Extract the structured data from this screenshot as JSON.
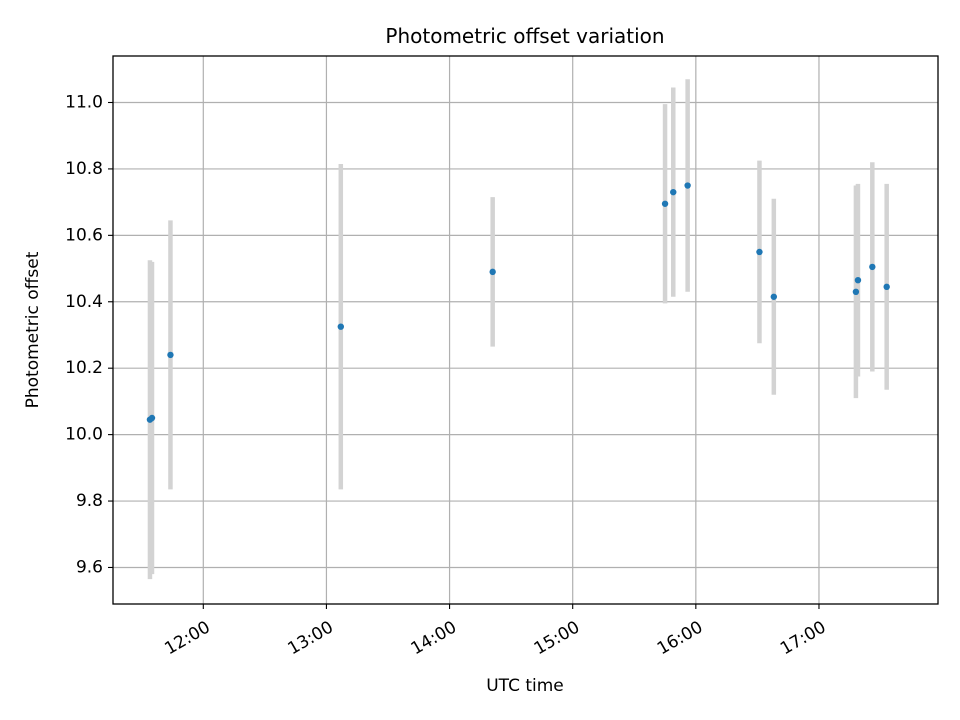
{
  "chart_data": {
    "type": "scatter",
    "title": "Photometric offset variation",
    "xlabel": "UTC time",
    "ylabel": "Photometric offset",
    "x_ticks": [
      "12:00",
      "13:00",
      "14:00",
      "15:00",
      "16:00",
      "17:00"
    ],
    "y_ticks": [
      "9.6",
      "9.8",
      "10.0",
      "10.2",
      "10.4",
      "10.6",
      "10.8",
      "11.0"
    ],
    "xlim": [
      "11:16",
      "17:58"
    ],
    "ylim": [
      9.49,
      11.14
    ],
    "grid": true,
    "colors": {
      "point": "#1f77b4",
      "errorbar": "#d3d3d3",
      "grid": "#b0b0b0"
    },
    "points": [
      {
        "x": "11:34",
        "y": 10.045,
        "yerr": 0.48
      },
      {
        "x": "11:35",
        "y": 10.05,
        "yerr": 0.47
      },
      {
        "x": "11:44",
        "y": 10.24,
        "yerr": 0.405
      },
      {
        "x": "13:07",
        "y": 10.325,
        "yerr": 0.49
      },
      {
        "x": "14:21",
        "y": 10.49,
        "yerr": 0.225
      },
      {
        "x": "15:45",
        "y": 10.695,
        "yerr": 0.3
      },
      {
        "x": "15:49",
        "y": 10.73,
        "yerr": 0.315
      },
      {
        "x": "15:56",
        "y": 10.75,
        "yerr": 0.32
      },
      {
        "x": "16:31",
        "y": 10.55,
        "yerr": 0.275
      },
      {
        "x": "16:38",
        "y": 10.415,
        "yerr": 0.295
      },
      {
        "x": "17:18",
        "y": 10.43,
        "yerr": 0.32
      },
      {
        "x": "17:19",
        "y": 10.465,
        "yerr": 0.29
      },
      {
        "x": "17:26",
        "y": 10.505,
        "yerr": 0.315
      },
      {
        "x": "17:33",
        "y": 10.445,
        "yerr": 0.31
      }
    ]
  }
}
